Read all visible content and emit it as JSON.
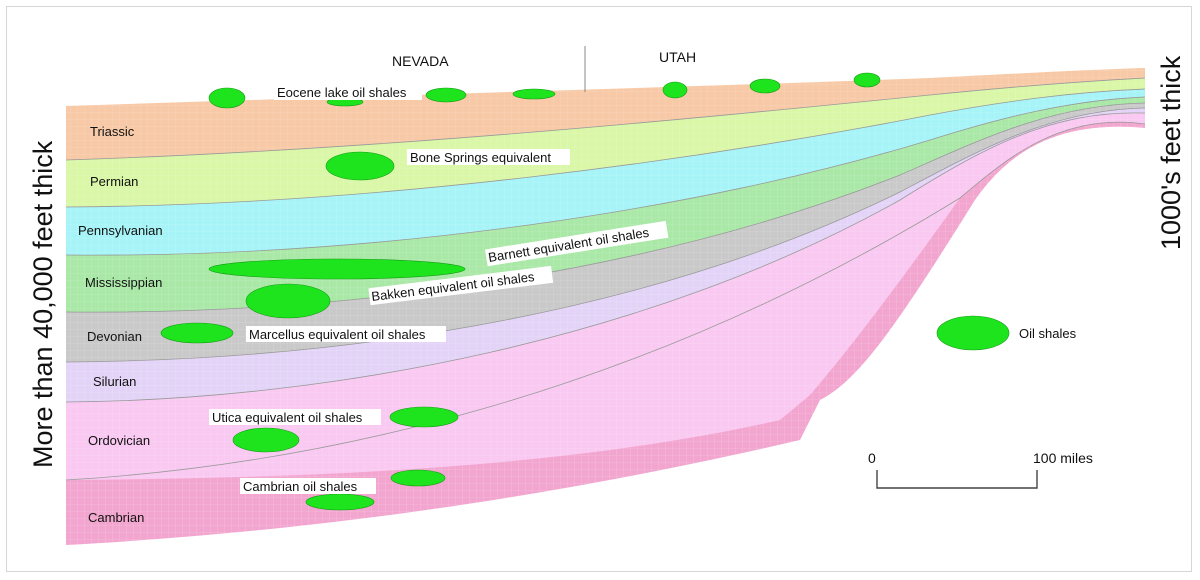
{
  "states": {
    "left": "NEVADA",
    "right": "UTAH"
  },
  "thickness": {
    "left": "More than 40,000 feet thick",
    "right": "1000's feet thick"
  },
  "periods": {
    "triassic": "Triassic",
    "permian": "Permian",
    "pennsylvanian": "Pennsylvanian",
    "mississippian": "Mississippian",
    "devonian": "Devonian",
    "silurian": "Silurian",
    "ordovician": "Ordovician",
    "cambrian": "Cambrian"
  },
  "shale_labels": {
    "eocene": "Eocene lake oil shales",
    "bone_springs": "Bone Springs equivalent",
    "barnett": "Barnett equivalent oil shales",
    "bakken": "Bakken equivalent oil shales",
    "marcellus": "Marcellus equivalent oil shales",
    "utica": "Utica equivalent oil shales",
    "cambrian": "Cambrian oil shales"
  },
  "legend": {
    "oil_shales": "Oil shales"
  },
  "scale_bar": {
    "start": "0",
    "end": "100 miles"
  },
  "colors": {
    "triassic": "#f7c9a6",
    "permian": "#d9f7a6",
    "pennsylvanian": "#a6f4f7",
    "mississippian": "#a9e8a6",
    "devonian": "#c9c9c9",
    "silurian": "#e3d4f7",
    "ordovician": "#f9c9f2",
    "cambrian": "#f2a6cf",
    "oil_shale": "#1ee41e"
  }
}
